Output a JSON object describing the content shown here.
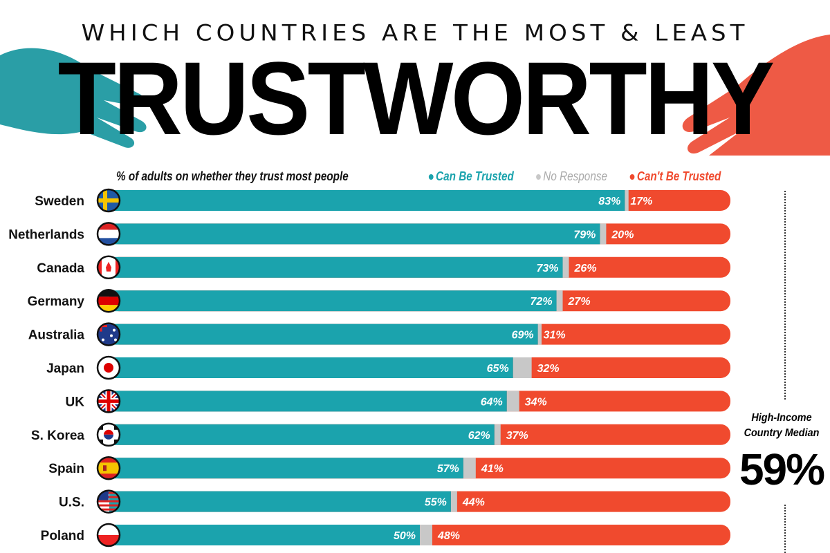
{
  "header": {
    "subtitle": "WHICH COUNTRIES ARE THE MOST & LEAST",
    "title": "TRUSTWORTHY"
  },
  "chart_data": {
    "type": "bar",
    "stacked": true,
    "orientation": "horizontal",
    "title": "% of adults on whether they trust most people",
    "categories": [
      "Sweden",
      "Netherlands",
      "Canada",
      "Germany",
      "Australia",
      "Japan",
      "UK",
      "S. Korea",
      "Spain",
      "U.S.",
      "Poland"
    ],
    "series": [
      {
        "name": "Can Be Trusted",
        "color": "#1ba3ad",
        "values": [
          83,
          79,
          73,
          72,
          69,
          65,
          64,
          62,
          57,
          55,
          50
        ]
      },
      {
        "name": "No Response",
        "color": "#c8c8c8",
        "values": [
          0,
          1,
          1,
          1,
          0,
          3,
          2,
          1,
          2,
          1,
          2
        ]
      },
      {
        "name": "Can't Be Trusted",
        "color": "#f04a2e",
        "values": [
          17,
          20,
          26,
          27,
          31,
          32,
          34,
          37,
          41,
          44,
          48
        ]
      }
    ],
    "legend_position": "top-right",
    "xlim": [
      0,
      100
    ],
    "annotation": {
      "label": "High-Income Country Median",
      "value": "59%"
    }
  }
}
